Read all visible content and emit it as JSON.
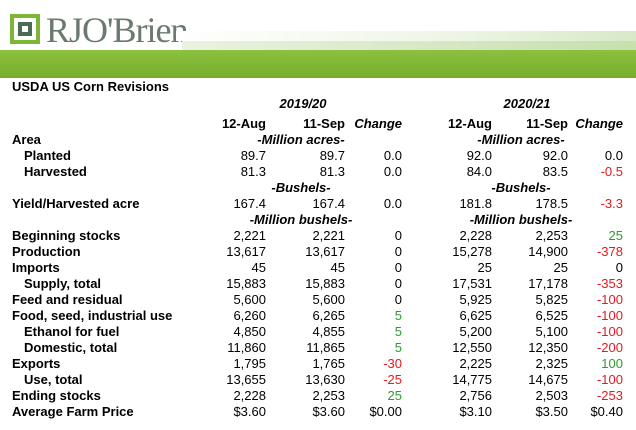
{
  "brand": {
    "name": "RJO'Brien"
  },
  "title": "USDA US Corn Revisions",
  "years": [
    "2019/20",
    "2020/21"
  ],
  "col_headers": [
    "12-Aug",
    "11-Sep",
    "Change",
    "12-Aug",
    "11-Sep",
    "Change"
  ],
  "units": {
    "acres": "-Million acres-",
    "bushels": "-Bushels-",
    "mbushels": "-Million bushels-"
  },
  "rows": [
    {
      "label": "Area",
      "v": [
        "",
        "",
        "",
        "",
        "",
        ""
      ]
    },
    {
      "label": "Planted",
      "v": [
        "89.7",
        "89.7",
        "0.0",
        "92.0",
        "92.0",
        "0.0"
      ]
    },
    {
      "label": "Harvested",
      "v": [
        "81.3",
        "81.3",
        "0.0",
        "84.0",
        "83.5",
        "-0.5"
      ]
    },
    {
      "label": "Yield/Harvested acre",
      "v": [
        "167.4",
        "167.4",
        "0.0",
        "181.8",
        "178.5",
        "-3.3"
      ]
    },
    {
      "label": "Beginning stocks",
      "v": [
        "2,221",
        "2,221",
        "0",
        "2,228",
        "2,253",
        "25"
      ]
    },
    {
      "label": "Production",
      "v": [
        "13,617",
        "13,617",
        "0",
        "15,278",
        "14,900",
        "-378"
      ]
    },
    {
      "label": "Imports",
      "v": [
        "45",
        "45",
        "0",
        "25",
        "25",
        "0"
      ]
    },
    {
      "label": "Supply, total",
      "v": [
        "15,883",
        "15,883",
        "0",
        "17,531",
        "17,178",
        "-353"
      ]
    },
    {
      "label": "Feed and residual",
      "v": [
        "5,600",
        "5,600",
        "0",
        "5,925",
        "5,825",
        "-100"
      ]
    },
    {
      "label": "Food, seed, industrial use",
      "v": [
        "6,260",
        "6,265",
        "5",
        "6,625",
        "6,525",
        "-100"
      ]
    },
    {
      "label": "Ethanol for fuel",
      "v": [
        "4,850",
        "4,855",
        "5",
        "5,200",
        "5,100",
        "-100"
      ]
    },
    {
      "label": "Domestic, total",
      "v": [
        "11,860",
        "11,865",
        "5",
        "12,550",
        "12,350",
        "-200"
      ]
    },
    {
      "label": "Exports",
      "v": [
        "1,795",
        "1,765",
        "-30",
        "2,225",
        "2,325",
        "100"
      ]
    },
    {
      "label": "Use, total",
      "v": [
        "13,655",
        "13,630",
        "-25",
        "14,775",
        "14,675",
        "-100"
      ]
    },
    {
      "label": "Ending stocks",
      "v": [
        "2,228",
        "2,253",
        "25",
        "2,756",
        "2,503",
        "-253"
      ]
    },
    {
      "label": "Average Farm Price",
      "v": [
        "$3.60",
        "$3.60",
        "$0.00",
        "$3.10",
        "$3.50",
        "$0.40"
      ]
    }
  ],
  "colors": {
    "brand_green": "#7db534",
    "up": "#2e9b2e",
    "down": "#e8191b"
  }
}
